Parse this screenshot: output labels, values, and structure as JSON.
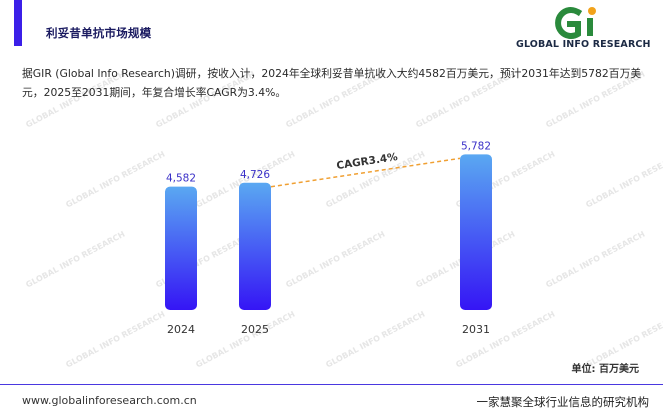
{
  "header": {
    "title": "利妥昔单抗市场规模",
    "accent_color": "#3b1fe8"
  },
  "logo": {
    "mark": "Gi",
    "text": "GLOBAL INFO RESEARCH",
    "mark_color": "#2a8a3c",
    "dot_color": "#f2a31b"
  },
  "description": "据GIR (Global Info Research)调研，按收入计，2024年全球利妥昔单抗收入大约4582百万美元，预计2031年达到5782百万美元，2025至2031期间，年复合增长率CAGR为3.4%。",
  "chart_data": {
    "type": "bar",
    "title": "",
    "xlabel": "",
    "ylabel": "",
    "categories": [
      "2024",
      "2025",
      "2031"
    ],
    "values": [
      4582,
      4726,
      5782
    ],
    "value_labels": [
      "4,582",
      "4,726",
      "5,782"
    ],
    "ylim": [
      0,
      6500
    ],
    "grid": false,
    "bar_gradient": [
      "#5aa8f2",
      "#3515f5"
    ],
    "value_label_color": "#3a30c8",
    "cagr": {
      "label": "CAGR3.4%",
      "from": "2025",
      "to": "2031",
      "color": "#f0a033"
    }
  },
  "unit_label": "单位: 百万美元",
  "footer": {
    "url": "www.globalinforesearch.com.cn",
    "slogan": "一家慧聚全球行业信息的研究机构",
    "line_color": "#4a38e0"
  },
  "watermark": "GLOBAL INFO RESEARCH"
}
